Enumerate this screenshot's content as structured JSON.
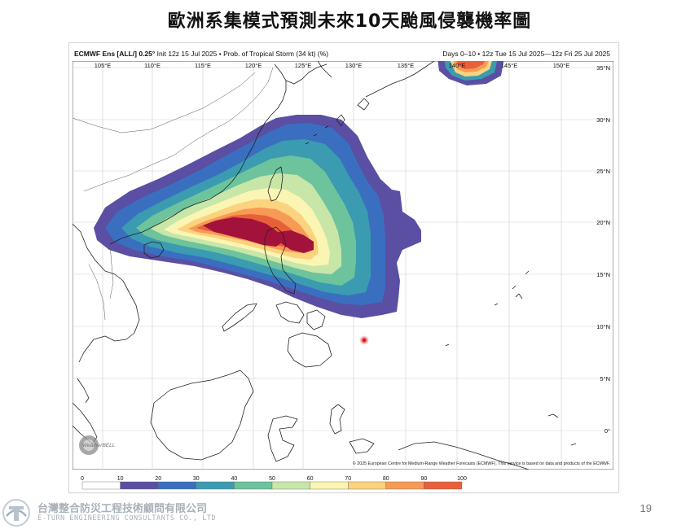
{
  "slide": {
    "title": "歐洲系集模式預測未來10天颱風侵襲機率圖",
    "page_number": "19"
  },
  "figure": {
    "model": "ECMWF Ens [ALL/] 0.25°",
    "init": "Init 12z 15 Jul 2025",
    "product": "Prob. of Tropical Storm (34 kt) (%)",
    "valid": "Days 0–10 • 12z Tue 15 Jul 2025—12z Fri 25 Jul 2025",
    "credit": "© 2025 European Centre for Medium-Range Weather Forecasts (ECMWF). This service is based on data and products of the ECMWF.",
    "watermark": "WeatherBELL",
    "lon_labels": [
      "105°E",
      "110°E",
      "115°E",
      "120°E",
      "125°E",
      "130°E",
      "135°E",
      "140°E",
      "145°E",
      "150°E"
    ],
    "lat_labels": [
      "35°N",
      "30°N",
      "25°N",
      "20°N",
      "15°N",
      "10°N",
      "5°N",
      "0°"
    ],
    "colorbar": {
      "ticks": [
        "0",
        "10",
        "20",
        "30",
        "40",
        "50",
        "60",
        "70",
        "80",
        "90",
        "100"
      ],
      "colors": [
        "#ffffff",
        "#5a4fa3",
        "#3a6fc0",
        "#3b9bb0",
        "#6cc39c",
        "#c8e6a8",
        "#fbf5b4",
        "#fbd37e",
        "#f79a56",
        "#e8603a",
        "#a3123a"
      ]
    }
  },
  "footer": {
    "company_cn": "台灣整合防災工程技術顧問有限公司",
    "company_en": "E-TURN ENGINEERING CONSULTANTS CO., LTD"
  }
}
